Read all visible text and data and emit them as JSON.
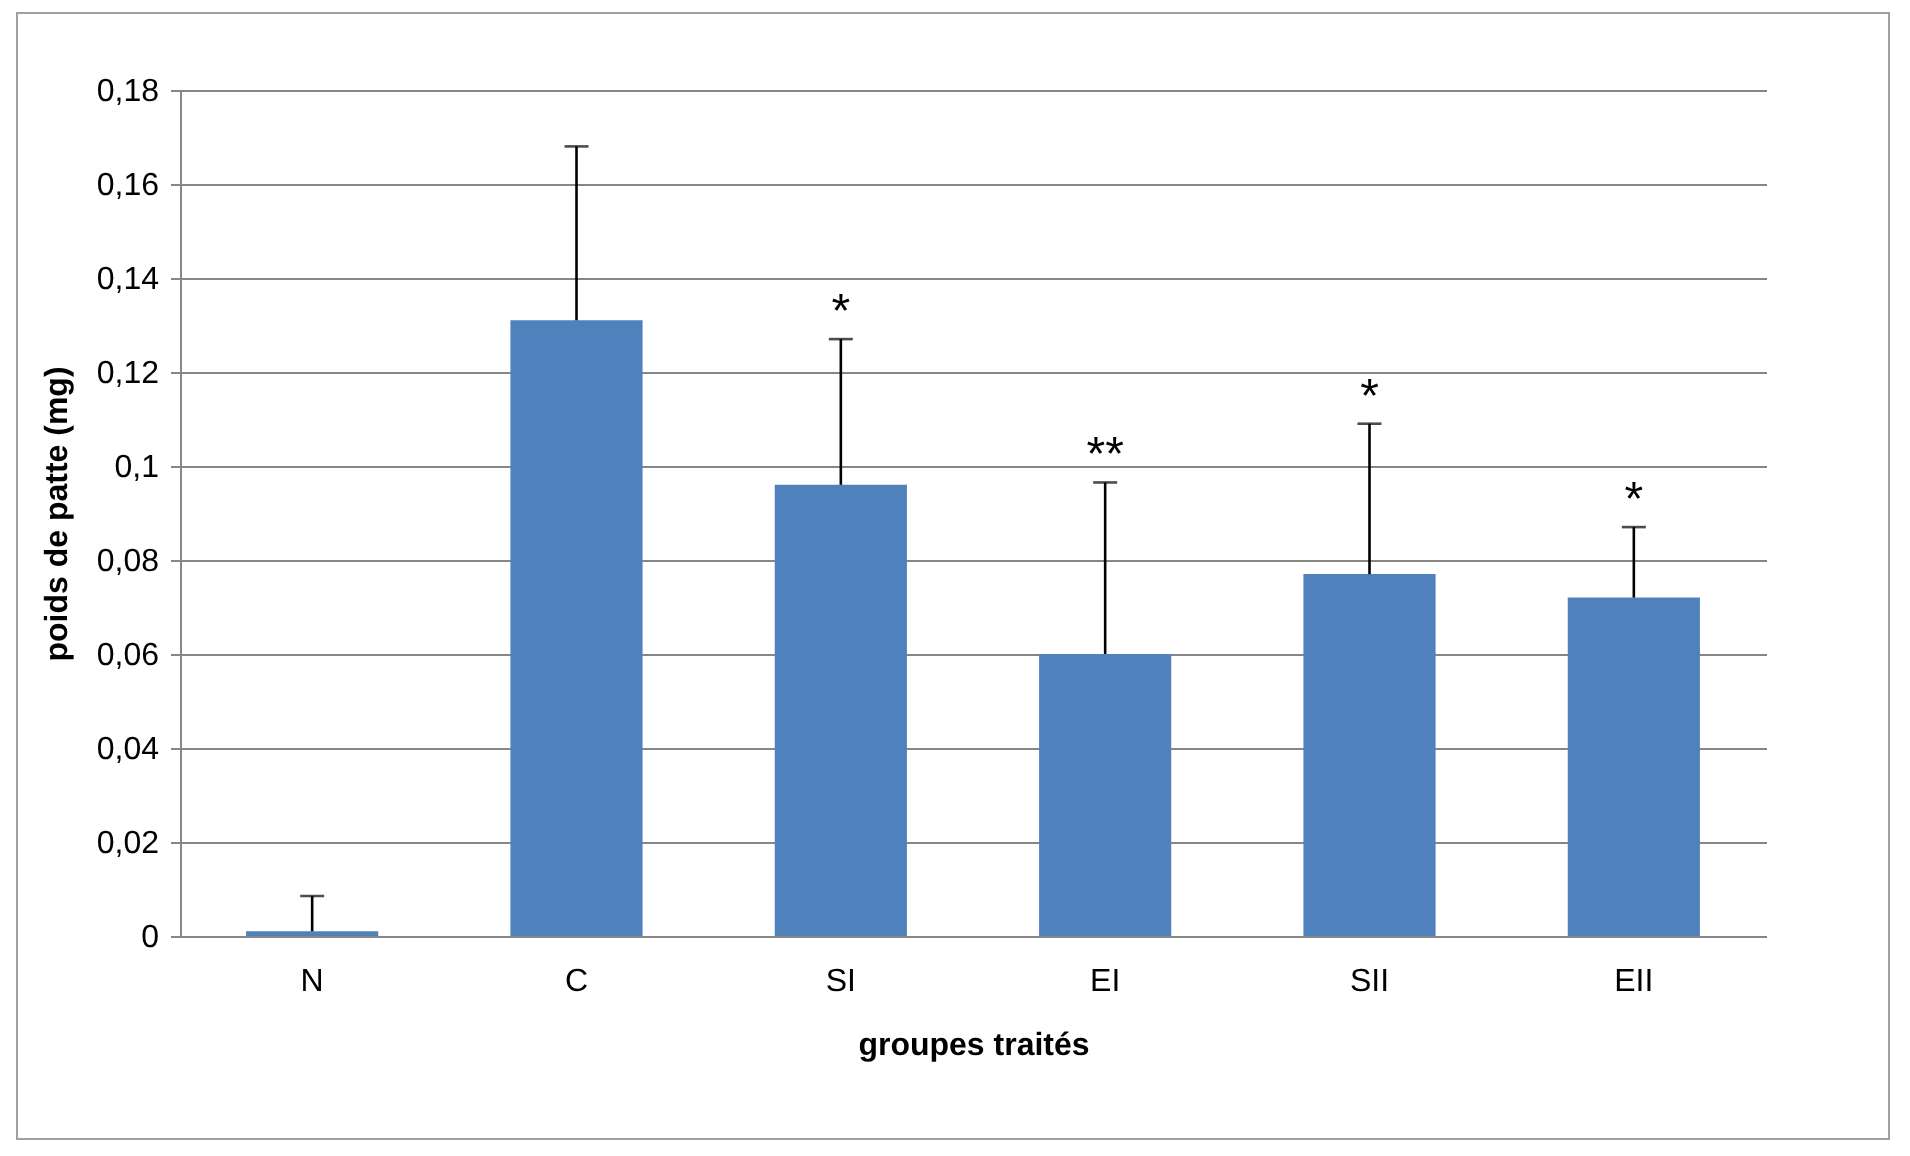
{
  "chart_data": {
    "type": "bar",
    "xlabel": "groupes traités",
    "ylabel": "poids de patte (mg)",
    "categories": [
      "N",
      "C",
      "SI",
      "EI",
      "SII",
      "EII"
    ],
    "series": [
      {
        "color": "#4f81bd",
        "values": [
          0.001,
          0.131,
          0.096,
          0.06,
          0.077,
          0.072
        ],
        "errors": [
          [
            0.001,
            0.0085
          ],
          [
            0.131,
            0.168
          ],
          [
            0.096,
            0.127
          ],
          [
            0.06,
            0.0965
          ],
          [
            0.077,
            0.109
          ],
          [
            0.072,
            0.087
          ]
        ]
      }
    ],
    "ylim": [
      0,
      0.18
    ],
    "yticks": [
      0,
      {
        "value": 0.02,
        "label": "0,02"
      },
      {
        "value": 0.04,
        "label": "0,04"
      },
      {
        "value": 0.06,
        "label": "0,06"
      },
      {
        "value": 0.08,
        "label": "0,08"
      },
      {
        "value": 0.1,
        "label": "0,1"
      },
      {
        "value": 0.12,
        "label": "0,12"
      },
      {
        "value": 0.14,
        "label": "0,14"
      },
      {
        "value": 0.16,
        "label": "0,16"
      },
      {
        "value": 0.18,
        "label": "0,18"
      }
    ],
    "grid": "y",
    "annotations": [
      "*",
      "**",
      "*",
      "*"
    ]
  }
}
